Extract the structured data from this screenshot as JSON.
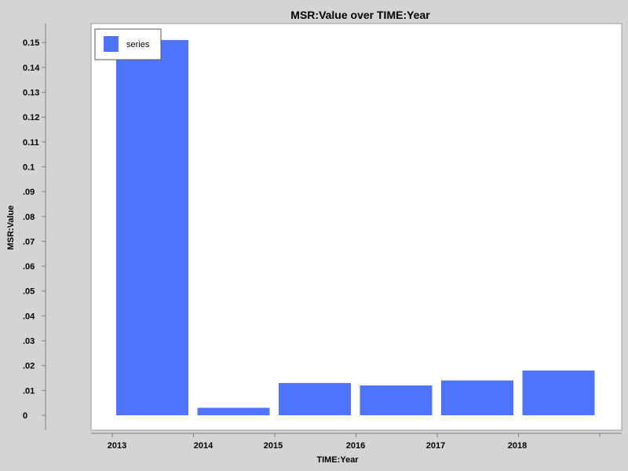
{
  "chart_data": {
    "type": "bar",
    "title": "MSR:Value over TIME:Year",
    "xlabel": "TIME:Year",
    "ylabel": "MSR:Value",
    "categories": [
      "2013",
      "2014",
      "2015",
      "2016",
      "2017",
      "2018"
    ],
    "series": [
      {
        "name": "series",
        "values": [
          0.151,
          0.003,
          0.013,
          0.012,
          0.014,
          0.018
        ]
      }
    ],
    "ylim": [
      0,
      0.155
    ],
    "yticks": [
      {
        "value": 0,
        "label": "0"
      },
      {
        "value": 0.01,
        "label": ".01"
      },
      {
        "value": 0.02,
        "label": ".02"
      },
      {
        "value": 0.03,
        "label": ".03"
      },
      {
        "value": 0.04,
        "label": ".04"
      },
      {
        "value": 0.05,
        "label": ".05"
      },
      {
        "value": 0.06,
        "label": ".06"
      },
      {
        "value": 0.07,
        "label": ".07"
      },
      {
        "value": 0.08,
        "label": ".08"
      },
      {
        "value": 0.09,
        "label": ".09"
      },
      {
        "value": 0.1,
        "label": "0.1"
      },
      {
        "value": 0.11,
        "label": "0.11"
      },
      {
        "value": 0.12,
        "label": "0.12"
      },
      {
        "value": 0.13,
        "label": "0.13"
      },
      {
        "value": 0.14,
        "label": "0.14"
      },
      {
        "value": 0.15,
        "label": "0.15"
      }
    ],
    "legend_position": "top-left",
    "grid": false,
    "colors": {
      "bar": "#4d73ff",
      "plot_background": "#ffffff",
      "page_background": "#d4d4d4"
    }
  }
}
